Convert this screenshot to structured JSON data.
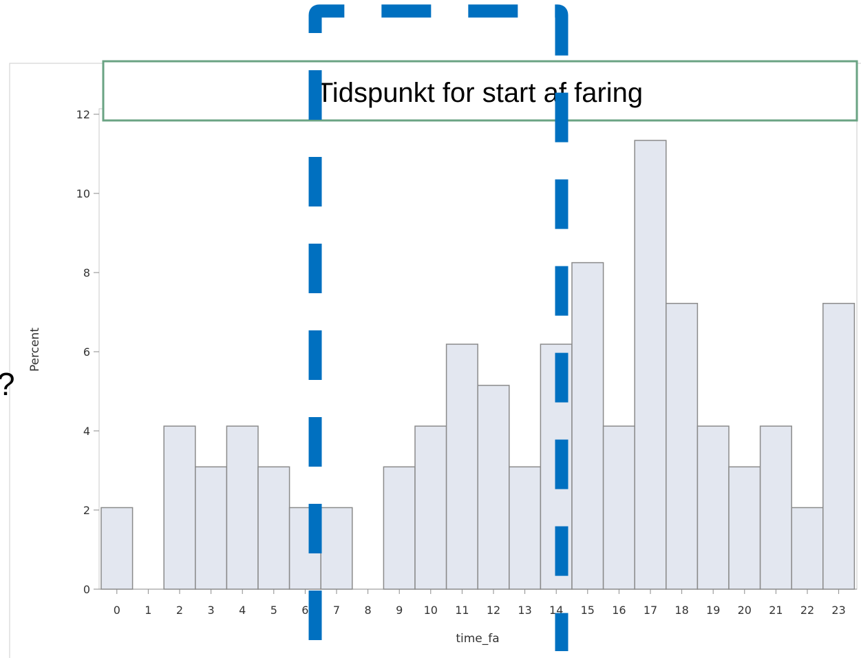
{
  "title_box": {
    "text": "Tidspunkt for start af faring",
    "border_color": "#6aa383"
  },
  "question_mark": "?",
  "highlight_box": {
    "color": "#0070c0"
  },
  "chart_data": {
    "type": "bar",
    "xlabel": "time_fa",
    "ylabel": "Percent",
    "ylim": [
      0,
      12
    ],
    "yticks": [
      0,
      2,
      4,
      6,
      8,
      10,
      12
    ],
    "categories": [
      "0",
      "1",
      "2",
      "3",
      "4",
      "5",
      "6",
      "7",
      "8",
      "9",
      "10",
      "11",
      "12",
      "13",
      "14",
      "15",
      "16",
      "17",
      "18",
      "19",
      "20",
      "21",
      "22",
      "23"
    ],
    "values": [
      2.06,
      0,
      4.12,
      3.09,
      4.12,
      3.09,
      2.06,
      2.06,
      0,
      3.09,
      4.12,
      6.19,
      5.15,
      3.09,
      6.19,
      8.25,
      4.12,
      11.34,
      7.22,
      4.12,
      3.09,
      4.12,
      2.06,
      7.22
    ],
    "bar_fill": "#e3e7f0",
    "bar_stroke": "#8a8a8a",
    "grid": false
  }
}
